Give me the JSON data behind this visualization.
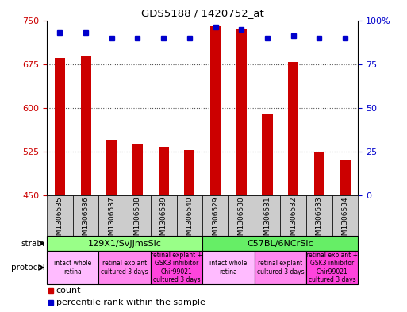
{
  "title": "GDS5188 / 1420752_at",
  "samples": [
    "GSM1306535",
    "GSM1306536",
    "GSM1306537",
    "GSM1306538",
    "GSM1306539",
    "GSM1306540",
    "GSM1306529",
    "GSM1306530",
    "GSM1306531",
    "GSM1306532",
    "GSM1306533",
    "GSM1306534"
  ],
  "counts": [
    685,
    690,
    545,
    538,
    533,
    527,
    740,
    735,
    590,
    678,
    523,
    510
  ],
  "percentiles": [
    93,
    93,
    90,
    90,
    90,
    90,
    96,
    95,
    90,
    91,
    90,
    90
  ],
  "ylim_left": [
    450,
    750
  ],
  "ylim_right": [
    0,
    100
  ],
  "yticks_left": [
    450,
    525,
    600,
    675,
    750
  ],
  "yticks_right": [
    0,
    25,
    50,
    75,
    100
  ],
  "bar_color": "#cc0000",
  "dot_color": "#0000cc",
  "strain_groups": [
    {
      "label": "129X1/SvJJmsSlc",
      "start": 0,
      "end": 6,
      "color": "#99ff88"
    },
    {
      "label": "C57BL/6NCrSlc",
      "start": 6,
      "end": 12,
      "color": "#66ee66"
    }
  ],
  "protocol_groups": [
    {
      "label": "intact whole\nretina",
      "start": 0,
      "end": 2,
      "color": "#ffbbff"
    },
    {
      "label": "retinal explant\ncultured 3 days",
      "start": 2,
      "end": 4,
      "color": "#ff88ee"
    },
    {
      "label": "retinal explant +\nGSK3 inhibitor\nChir99021\ncultured 3 days",
      "start": 4,
      "end": 6,
      "color": "#ff44dd"
    },
    {
      "label": "intact whole\nretina",
      "start": 6,
      "end": 8,
      "color": "#ffbbff"
    },
    {
      "label": "retinal explant\ncultured 3 days",
      "start": 8,
      "end": 10,
      "color": "#ff88ee"
    },
    {
      "label": "retinal explant +\nGSK3 inhibitor\nChir99021\ncultured 3 days",
      "start": 10,
      "end": 12,
      "color": "#ff44dd"
    }
  ],
  "sample_bg": "#cccccc",
  "bg_color": "#ffffff",
  "tick_color_left": "#cc0000",
  "tick_color_right": "#0000cc",
  "grid_color": "#555555",
  "bar_width": 0.4
}
